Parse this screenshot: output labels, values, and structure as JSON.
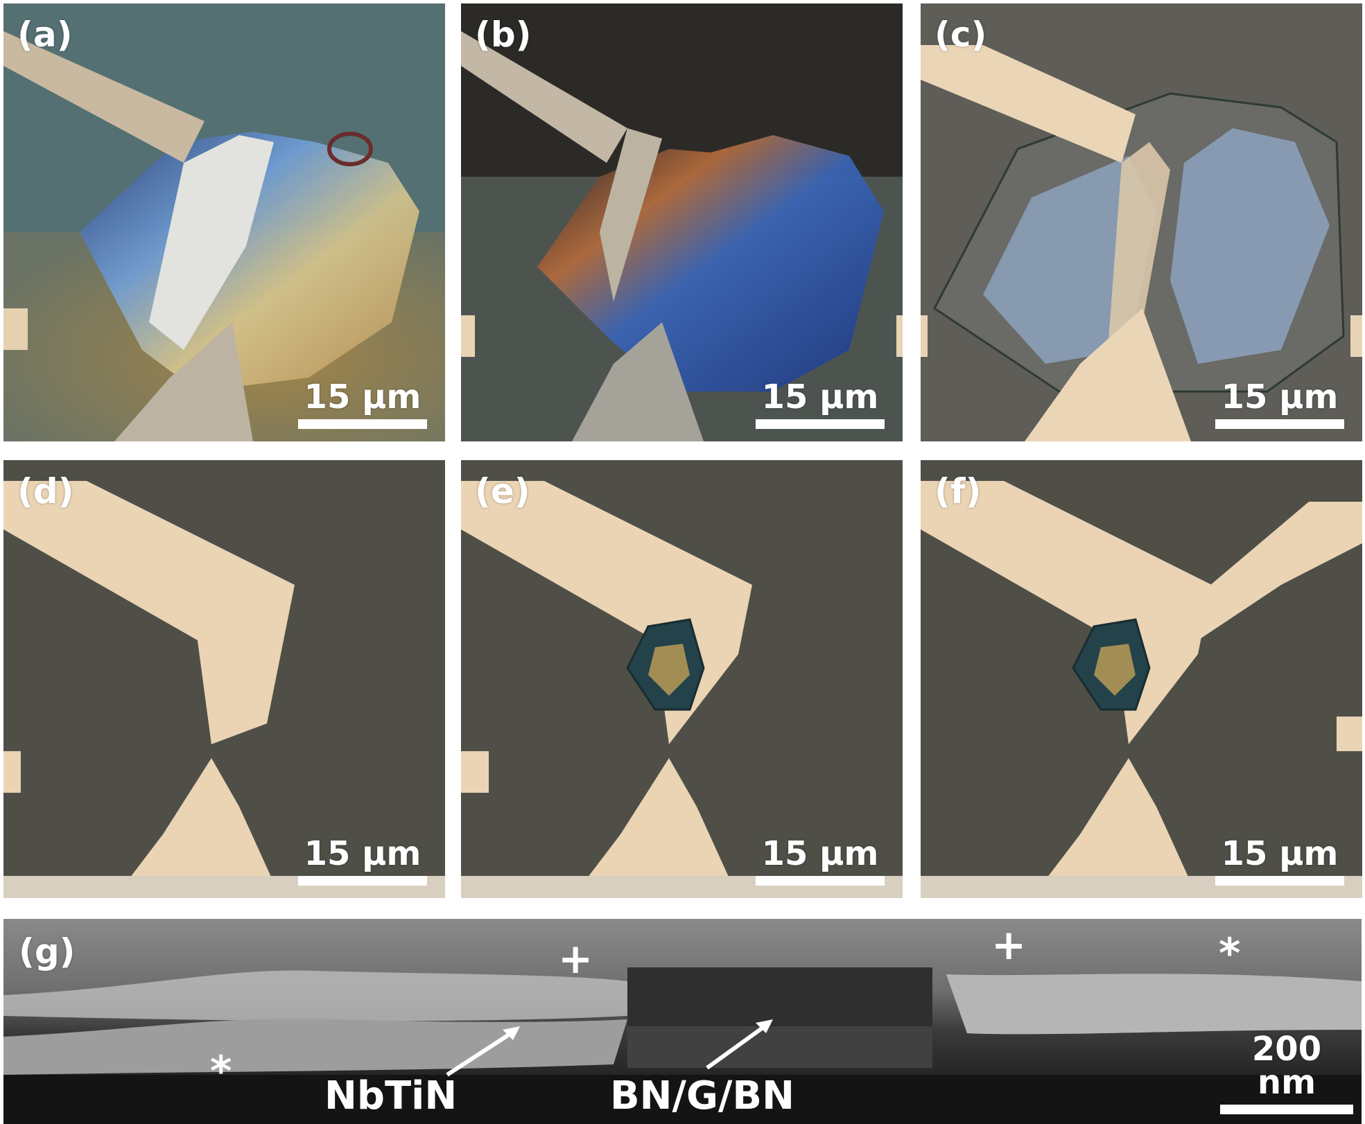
{
  "panels": {
    "a": {
      "label": "(a)",
      "scale": "15 µm"
    },
    "b": {
      "label": "(b)",
      "scale": "15 µm"
    },
    "c": {
      "label": "(c)",
      "scale": "15 µm"
    },
    "d": {
      "label": "(d)",
      "scale": "15 µm"
    },
    "e": {
      "label": "(e)",
      "scale": "15 µm"
    },
    "f": {
      "label": "(f)",
      "scale": "15 µm"
    },
    "g": {
      "label": "(g)",
      "scale": "200 nm",
      "markers": {
        "plus": "+",
        "star": "*"
      },
      "annotations": {
        "metal": "NbTiN",
        "stack": "BN/G/BN"
      }
    }
  },
  "colors": {
    "substrate_dark": "#4f5048",
    "substrate_grey": "#5a5a55",
    "electrode_light": "#ead4b4",
    "flake_blue": "#3f6fb0",
    "flake_orange": "#b88a3a",
    "sem_bright": "#b5b5b5",
    "sem_dark": "#262626"
  }
}
